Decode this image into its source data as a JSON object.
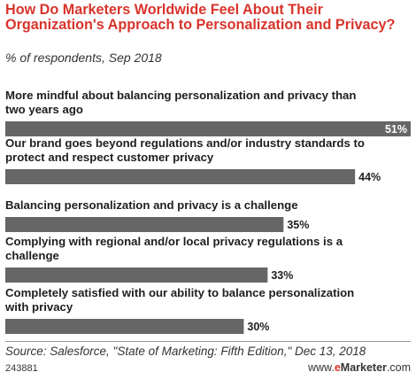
{
  "header": {
    "title": "How Do Marketers Worldwide Feel About Their Organization's Approach to Personalization and Privacy?",
    "subtitle": "% of respondents, Sep 2018"
  },
  "chart_data": {
    "type": "bar",
    "orientation": "horizontal",
    "categories": [
      "More mindful about balancing personalization and privacy than two years ago",
      "Our brand goes beyond regulations and/or industry standards to protect and respect customer privacy",
      "Balancing personalization and privacy is a challenge",
      "Complying with regional and/or local privacy regulations is a challenge",
      "Completely satisfied with our ability to balance personalization with privacy"
    ],
    "values": [
      51,
      44,
      35,
      33,
      30
    ],
    "value_labels": [
      "51%",
      "44%",
      "35%",
      "33%",
      "30%"
    ],
    "xlim": [
      0,
      51
    ],
    "bar_color": "#666666",
    "title": "How Do Marketers Worldwide Feel About Their Organization's Approach to Personalization and Privacy?",
    "subtitle": "% of respondents, Sep 2018",
    "xlabel": "",
    "ylabel": ""
  },
  "footer": {
    "source": "Source: Salesforce, \"State of Marketing: Fifth Edition,\" Dec 13, 2018",
    "chart_id": "243881",
    "brand_prefix": "www.",
    "brand_e": "e",
    "brand_name": "Marketer",
    "brand_suffix": ".com"
  },
  "colors": {
    "accent": "#d8342b",
    "bar": "#666666",
    "text": "#1e1e1e"
  }
}
